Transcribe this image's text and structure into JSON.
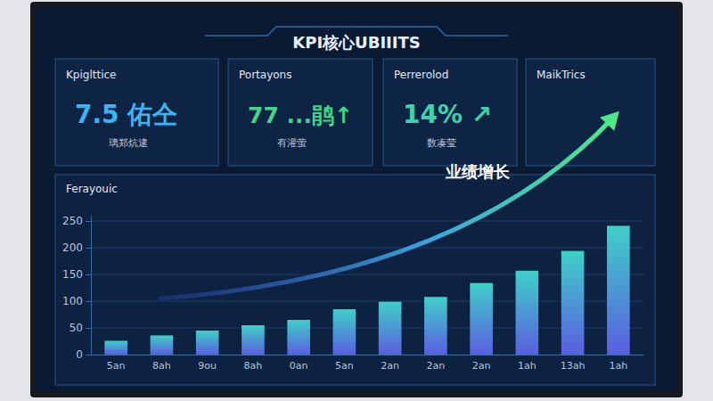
{
  "header": {
    "title": "KPI核心UBIIITS"
  },
  "cards": [
    {
      "title": "Kpiglttice",
      "value": "7.5 佑仝",
      "caption": "璃郑炕逮"
    },
    {
      "title": "Portayons",
      "value": "77 ...鹃↑",
      "caption": "有灌萤"
    },
    {
      "title": "Perrerolod",
      "value": "14% ↗",
      "caption": "数凑莹"
    },
    {
      "title": "MaikTrics"
    }
  ],
  "annotation": "业绩增长",
  "chart_data": {
    "type": "bar",
    "title": "Ferayouic",
    "categories": [
      "5an",
      "8ah",
      "9ou",
      "8ah",
      "0an",
      "5an",
      "2an",
      "2an",
      "2an",
      "1ah",
      "13ah",
      "1ah"
    ],
    "values": [
      26,
      36,
      45,
      55,
      65,
      85,
      99,
      108,
      134,
      157,
      194,
      241
    ],
    "color": "#3fd0c8",
    "ylim": [
      0,
      260
    ],
    "yticks": [
      0,
      50,
      100,
      150,
      200,
      250
    ],
    "grid": true
  }
}
